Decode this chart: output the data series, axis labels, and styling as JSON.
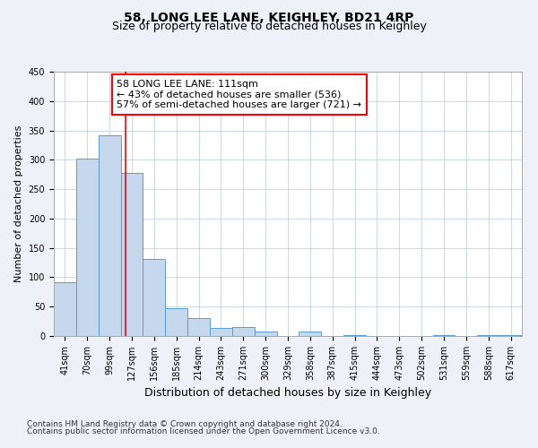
{
  "title": "58, LONG LEE LANE, KEIGHLEY, BD21 4RP",
  "subtitle": "Size of property relative to detached houses in Keighley",
  "xlabel": "Distribution of detached houses by size in Keighley",
  "ylabel": "Number of detached properties",
  "footnote1": "Contains HM Land Registry data © Crown copyright and database right 2024.",
  "footnote2": "Contains public sector information licensed under the Open Government Licence v3.0.",
  "bar_labels": [
    "41sqm",
    "70sqm",
    "99sqm",
    "127sqm",
    "156sqm",
    "185sqm",
    "214sqm",
    "243sqm",
    "271sqm",
    "300sqm",
    "329sqm",
    "358sqm",
    "387sqm",
    "415sqm",
    "444sqm",
    "473sqm",
    "502sqm",
    "531sqm",
    "559sqm",
    "588sqm",
    "617sqm"
  ],
  "bar_values": [
    92,
    302,
    341,
    278,
    131,
    47,
    30,
    13,
    15,
    7,
    0,
    8,
    0,
    2,
    0,
    0,
    0,
    2,
    0,
    2,
    2
  ],
  "bar_color": "#c5d8ed",
  "bar_edge_color": "#5b9bd5",
  "ylim": [
    0,
    450
  ],
  "yticks": [
    0,
    50,
    100,
    150,
    200,
    250,
    300,
    350,
    400,
    450
  ],
  "red_line_x": 2.72,
  "annotation_title": "58 LONG LEE LANE: 111sqm",
  "annotation_line1": "← 43% of detached houses are smaller (536)",
  "annotation_line2": "57% of semi-detached houses are larger (721) →",
  "background_color": "#eef2f8",
  "plot_bg_color": "#ffffff",
  "grid_color": "#c8d8ea",
  "title_fontsize": 10,
  "subtitle_fontsize": 9,
  "xlabel_fontsize": 9,
  "ylabel_fontsize": 8,
  "tick_fontsize": 7,
  "annotation_fontsize": 8
}
